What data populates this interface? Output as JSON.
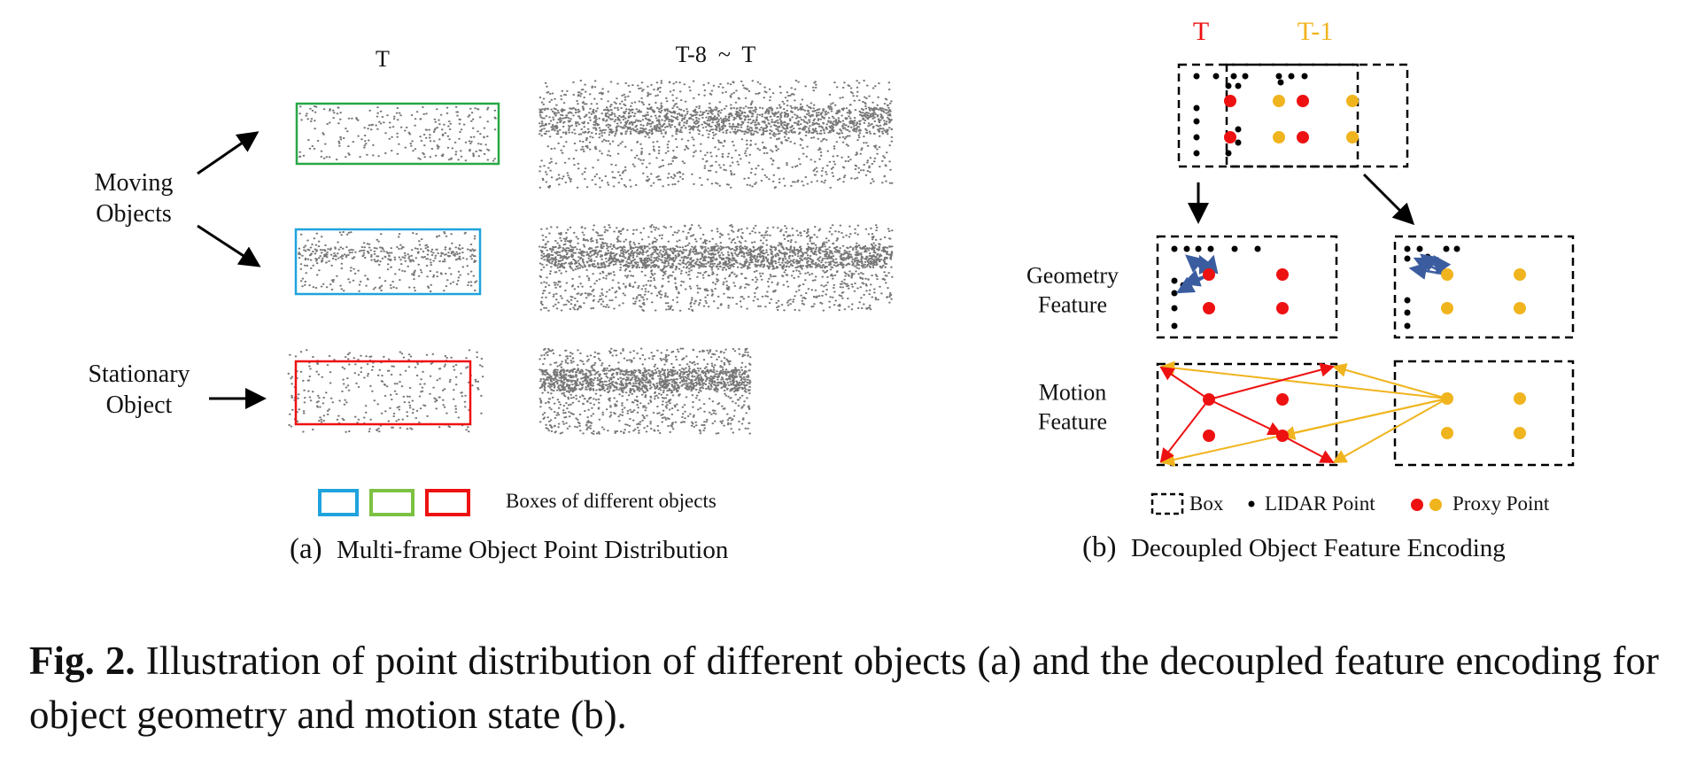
{
  "panel_a": {
    "col_labels": [
      "T",
      "T-8  ~  T"
    ],
    "row_labels": [
      "Moving Objects",
      "Stationary Object"
    ],
    "legend": "Boxes of different objects",
    "sublabel": "(a)",
    "subtitle": "Multi-frame Object Point Distribution"
  },
  "panel_b": {
    "frame_labels": [
      "T",
      "T-1"
    ],
    "row_labels": [
      "Geometry Feature",
      "Motion Feature"
    ],
    "legend": [
      "Box",
      "LIDAR Point",
      "Proxy Point"
    ],
    "sublabel": "(b)",
    "subtitle": "Decoupled Object Feature Encoding"
  },
  "caption": {
    "label": "Fig. 2.",
    "text": "Illustration of point distribution of different objects (a) and the decoupled feature encoding for object geometry and motion state (b)."
  }
}
